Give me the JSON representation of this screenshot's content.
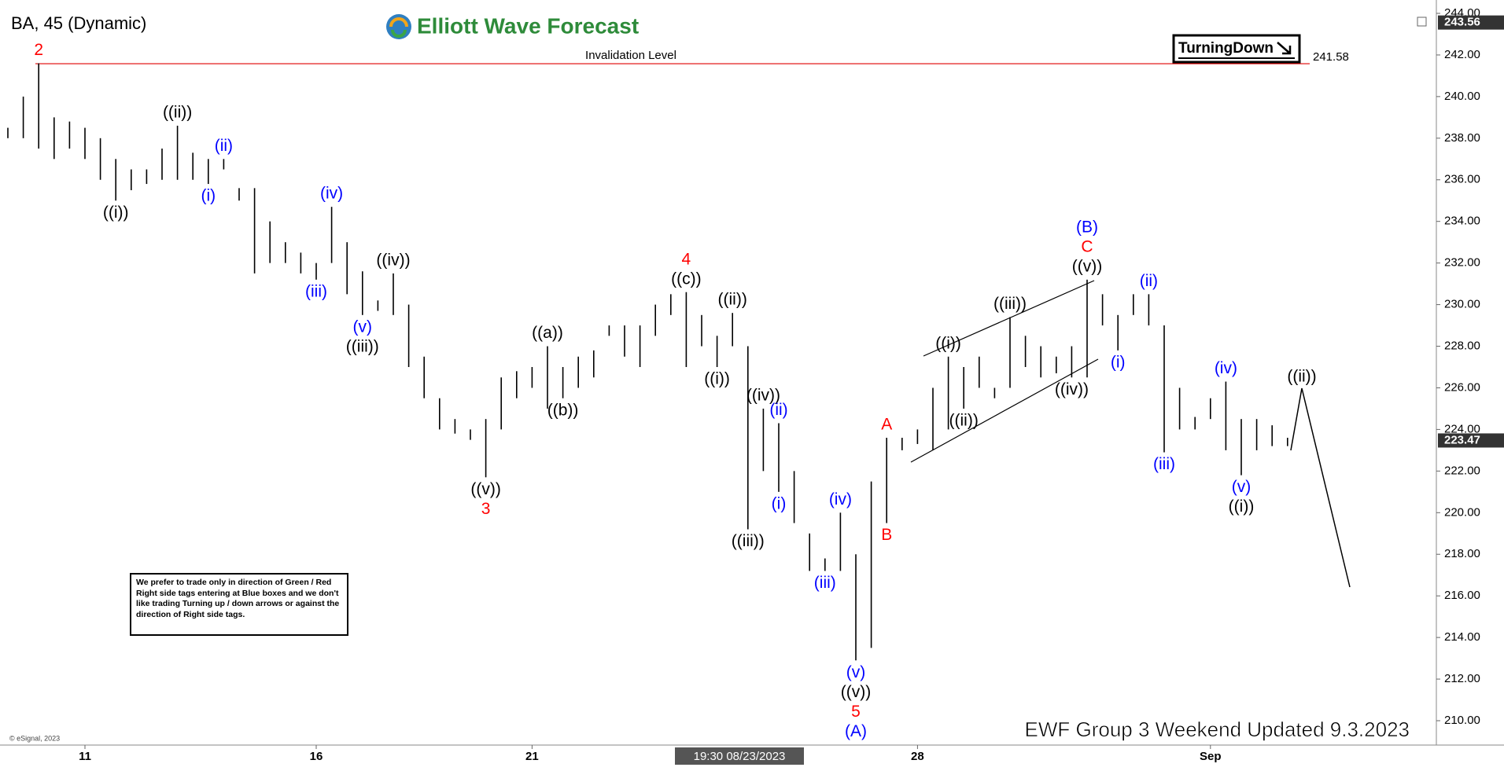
{
  "chart_data": {
    "type": "ohlc",
    "title": "BA, 45 (Dynamic)",
    "brand": "Elliott Wave Forecast",
    "badge": "TurningDown",
    "footer": "EWF Group 3 Weekend Updated 9.3.2023",
    "copyright": "© eSignal, 2023",
    "crosshair_label": "19:30 08/23/2023",
    "projection_label": "((ii))",
    "disclaimer": "We prefer to trade only in direction of Green / Red Right side tags entering at Blue boxes and we don't like trading Turning up / down arrows or against the direction of Right side tags.",
    "invalidation": {
      "label": "Invalidation Level",
      "value": 241.58,
      "color": "#e00000"
    },
    "price_tags": [
      243.56,
      223.47
    ],
    "bar_color": "#000000",
    "ylim": [
      210,
      244
    ],
    "yticks": [
      {
        "value": 210,
        "label": "210.00"
      },
      {
        "value": 212,
        "label": "212.00"
      },
      {
        "value": 214,
        "label": "214.00"
      },
      {
        "value": 216,
        "label": "216.00"
      },
      {
        "value": 218,
        "label": "218.00"
      },
      {
        "value": 220,
        "label": "220.00"
      },
      {
        "value": 222,
        "label": "222.00"
      },
      {
        "value": 224,
        "label": "224.00"
      },
      {
        "value": 226,
        "label": "226.00"
      },
      {
        "value": 228,
        "label": "228.00"
      },
      {
        "value": 230,
        "label": "230.00"
      },
      {
        "value": 232,
        "label": "232.00"
      },
      {
        "value": 234,
        "label": "234.00"
      },
      {
        "value": 236,
        "label": "236.00"
      },
      {
        "value": 238,
        "label": "238.00"
      },
      {
        "value": 240,
        "label": "240.00"
      },
      {
        "value": 242,
        "label": "242.00"
      },
      {
        "value": 244,
        "label": "244.00"
      }
    ],
    "categories": [
      null,
      null,
      null,
      null,
      null,
      "11",
      null,
      null,
      null,
      null,
      null,
      null,
      null,
      null,
      null,
      null,
      null,
      null,
      null,
      null,
      "16",
      null,
      null,
      null,
      null,
      null,
      null,
      null,
      null,
      null,
      null,
      null,
      null,
      null,
      "21",
      null,
      null,
      null,
      null,
      null,
      null,
      null,
      null,
      null,
      null,
      null,
      null,
      null,
      null,
      null,
      null,
      null,
      null,
      null,
      null,
      null,
      null,
      null,
      null,
      "28",
      null,
      null,
      null,
      null,
      null,
      null,
      null,
      null,
      null,
      null,
      null,
      null,
      null,
      null,
      null,
      null,
      null,
      null,
      "Sep",
      null,
      null,
      null,
      null,
      null
    ],
    "high": [
      238.5,
      240,
      241.6,
      239,
      238.8,
      238.5,
      238,
      237,
      236.5,
      236.5,
      237.5,
      238.6,
      237.3,
      237,
      237,
      235.6,
      235.6,
      234,
      233,
      232.5,
      232,
      234.7,
      233,
      231.6,
      230.2,
      231.5,
      230,
      227.5,
      225.5,
      224.5,
      224,
      224.5,
      226.5,
      226.8,
      227,
      228,
      227,
      227.5,
      227.8,
      229,
      229,
      229,
      230,
      230.5,
      230.6,
      229.5,
      228.5,
      229.6,
      228,
      225,
      224.3,
      222,
      219,
      217.8,
      220,
      218,
      221.5,
      223.6,
      223.6,
      224,
      226,
      227.5,
      227,
      227.5,
      226,
      229.4,
      228.5,
      228,
      227.5,
      228,
      231.2,
      230.5,
      229.5,
      230.5,
      230.5,
      229,
      226,
      224.6,
      225.5,
      226.3,
      224.5,
      224.5,
      224.2,
      223.6
    ],
    "low": [
      238,
      238,
      237.5,
      237,
      237.5,
      237,
      236,
      235,
      235.5,
      235.8,
      236,
      236,
      236,
      235.8,
      236.5,
      235,
      231.5,
      232,
      232,
      231.5,
      231.2,
      232,
      230.5,
      229.5,
      229.7,
      229.5,
      227,
      225.5,
      224,
      223.8,
      223.5,
      221.7,
      224,
      225.5,
      226,
      225,
      225.5,
      226,
      226.5,
      228.5,
      227.5,
      227,
      228.5,
      229.5,
      227,
      228,
      227,
      228,
      219.2,
      222,
      221,
      219.5,
      217.2,
      217.2,
      217.2,
      212.9,
      213.5,
      219.5,
      223,
      223.3,
      223,
      224,
      225,
      226,
      225.5,
      226,
      227,
      226.5,
      226.7,
      226.5,
      226.5,
      229,
      227.8,
      229.5,
      229,
      222.9,
      224,
      224,
      224.5,
      223,
      221.8,
      223,
      223.2,
      223.2
    ],
    "annotations": [
      {
        "text": "2",
        "color": "#ff0000",
        "at": 2,
        "pos": "high"
      },
      {
        "text": "((i))",
        "color": "#000000",
        "at": 7,
        "pos": "low"
      },
      {
        "text": "((ii))",
        "color": "#000000",
        "at": 11,
        "pos": "high"
      },
      {
        "text": "(i)",
        "color": "#0000ff",
        "at": 13,
        "pos": "low"
      },
      {
        "text": "(ii)",
        "color": "#0000ff",
        "at": 14,
        "pos": "high"
      },
      {
        "text": "(iii)",
        "color": "#0000ff",
        "at": 20,
        "pos": "low"
      },
      {
        "text": "(iv)",
        "color": "#0000ff",
        "at": 21,
        "pos": "high"
      },
      {
        "text": "(v)",
        "color": "#0000ff",
        "at": 23,
        "pos": "low"
      },
      {
        "text": "((iii))",
        "color": "#000000",
        "at": 23,
        "pos": "low"
      },
      {
        "text": "((iv))",
        "color": "#000000",
        "at": 25,
        "pos": "high"
      },
      {
        "text": "((v))",
        "color": "#000000",
        "at": 31,
        "pos": "low"
      },
      {
        "text": "3",
        "color": "#ff0000",
        "at": 31,
        "pos": "low"
      },
      {
        "text": "((a))",
        "color": "#000000",
        "at": 35,
        "pos": "high"
      },
      {
        "text": "((b))",
        "color": "#000000",
        "at": 36,
        "pos": "low"
      },
      {
        "text": "((c))",
        "color": "#000000",
        "at": 44,
        "pos": "high"
      },
      {
        "text": "4",
        "color": "#ff0000",
        "at": 44,
        "pos": "high"
      },
      {
        "text": "((i))",
        "color": "#000000",
        "at": 46,
        "pos": "low"
      },
      {
        "text": "((ii))",
        "color": "#000000",
        "at": 47,
        "pos": "high"
      },
      {
        "text": "((iii))",
        "color": "#000000",
        "at": 48,
        "pos": "low"
      },
      {
        "text": "((iv))",
        "color": "#000000",
        "at": 49,
        "pos": "high"
      },
      {
        "text": "(ii)",
        "color": "#0000ff",
        "at": 50,
        "pos": "high"
      },
      {
        "text": "(i)",
        "color": "#0000ff",
        "at": 50,
        "pos": "low"
      },
      {
        "text": "(iii)",
        "color": "#0000ff",
        "at": 53,
        "pos": "low"
      },
      {
        "text": "(iv)",
        "color": "#0000ff",
        "at": 54,
        "pos": "high"
      },
      {
        "text": "(v)",
        "color": "#0000ff",
        "at": 55,
        "pos": "low"
      },
      {
        "text": "((v))",
        "color": "#000000",
        "at": 55,
        "pos": "low"
      },
      {
        "text": "5",
        "color": "#ff0000",
        "at": 55,
        "pos": "low"
      },
      {
        "text": "(A)",
        "color": "#0000ff",
        "at": 55,
        "pos": "low"
      },
      {
        "text": "A",
        "color": "#ff0000",
        "at": 57,
        "pos": "high"
      },
      {
        "text": "B",
        "color": "#ff0000",
        "at": 57,
        "pos": "low"
      },
      {
        "text": "((i))",
        "color": "#000000",
        "at": 61,
        "pos": "high"
      },
      {
        "text": "((ii))",
        "color": "#000000",
        "at": 62,
        "pos": "low"
      },
      {
        "text": "((iii))",
        "color": "#000000",
        "at": 65,
        "pos": "high"
      },
      {
        "text": "((iv))",
        "color": "#000000",
        "at": 69,
        "pos": "low"
      },
      {
        "text": "((v))",
        "color": "#000000",
        "at": 70,
        "pos": "high"
      },
      {
        "text": "C",
        "color": "#ff0000",
        "at": 70,
        "pos": "high"
      },
      {
        "text": "(B)",
        "color": "#0000ff",
        "at": 70,
        "pos": "high"
      },
      {
        "text": "(i)",
        "color": "#0000ff",
        "at": 72,
        "pos": "low"
      },
      {
        "text": "(ii)",
        "color": "#0000ff",
        "at": 74,
        "pos": "high"
      },
      {
        "text": "(iii)",
        "color": "#0000ff",
        "at": 75,
        "pos": "low"
      },
      {
        "text": "(iv)",
        "color": "#0000ff",
        "at": 79,
        "pos": "high"
      },
      {
        "text": "(v)",
        "color": "#0000ff",
        "at": 80,
        "pos": "low"
      },
      {
        "text": "((i))",
        "color": "#000000",
        "at": 80,
        "pos": "low"
      }
    ]
  }
}
